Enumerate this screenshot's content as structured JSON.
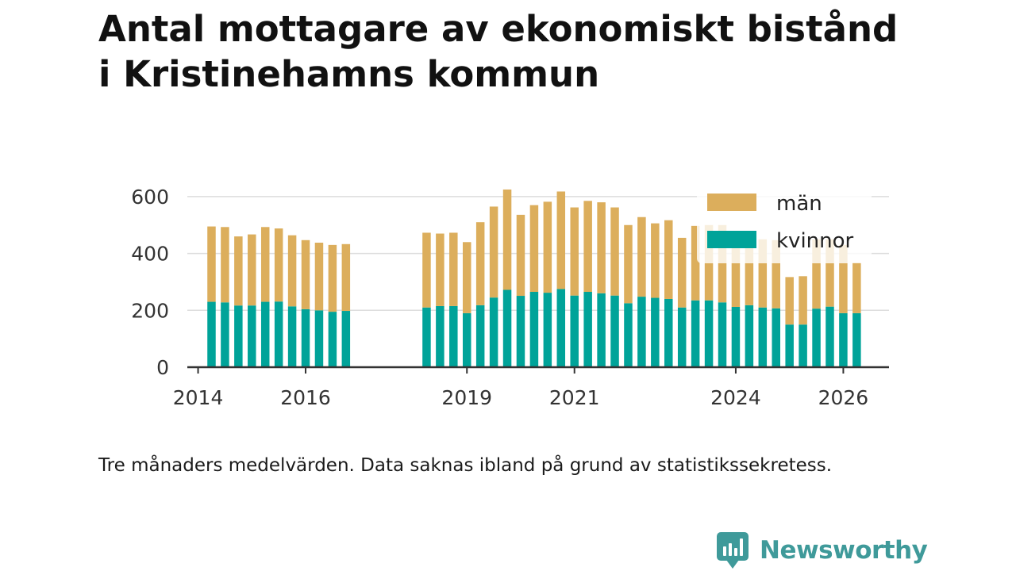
{
  "title": {
    "line1": "Antal mottagare av ekonomiskt bistånd",
    "line2": "i Kristinehamns kommun"
  },
  "note": "Tre månaders medelvärden. Data saknas ibland på grund av statistikssekretess.",
  "brand": {
    "name": "Newsworthy",
    "icon": "newsworthy-logo-icon",
    "color": "#3f9a9a"
  },
  "chart_data": {
    "type": "bar",
    "stacked": true,
    "x_unit": "quarter (decimal year)",
    "xlim": [
      2013.8,
      2026.85
    ],
    "ylim": [
      0,
      650
    ],
    "y_ticks": [
      0,
      200,
      400,
      600
    ],
    "x_ticks": [
      2014,
      2016,
      2019,
      2021,
      2024,
      2026
    ],
    "grid": true,
    "legend_position": "top-right",
    "x": [
      2014.25,
      2014.5,
      2014.75,
      2015,
      2015.25,
      2015.5,
      2015.75,
      2016,
      2016.25,
      2016.5,
      2016.75,
      2018.25,
      2018.5,
      2018.75,
      2019,
      2019.25,
      2019.5,
      2019.75,
      2020,
      2020.25,
      2020.5,
      2020.75,
      2021,
      2021.25,
      2021.5,
      2021.75,
      2022,
      2022.25,
      2022.5,
      2022.75,
      2023,
      2023.25,
      2023.5,
      2023.75,
      2024,
      2024.25,
      2024.5,
      2024.75,
      2025,
      2025.25,
      2025.5,
      2025.75,
      2026,
      2026.25
    ],
    "series": [
      {
        "name": "kvinnor",
        "color": "#00a399",
        "values": [
          230,
          228,
          217,
          217,
          230,
          231,
          214,
          204,
          200,
          195,
          198,
          210,
          215,
          215,
          190,
          218,
          245,
          272,
          251,
          265,
          262,
          275,
          252,
          265,
          260,
          252,
          225,
          248,
          244,
          240,
          210,
          235,
          235,
          228,
          212,
          218,
          210,
          207,
          150,
          150,
          206,
          213,
          190,
          190
        ]
      },
      {
        "name": "män",
        "color": "#dcae5c",
        "values": [
          265,
          265,
          243,
          250,
          263,
          257,
          250,
          243,
          238,
          235,
          235,
          263,
          255,
          258,
          250,
          292,
          320,
          353,
          285,
          305,
          320,
          343,
          310,
          320,
          320,
          310,
          275,
          280,
          262,
          277,
          245,
          262,
          265,
          272,
          248,
          238,
          240,
          240,
          167,
          170,
          244,
          237,
          240,
          178
        ]
      }
    ]
  }
}
